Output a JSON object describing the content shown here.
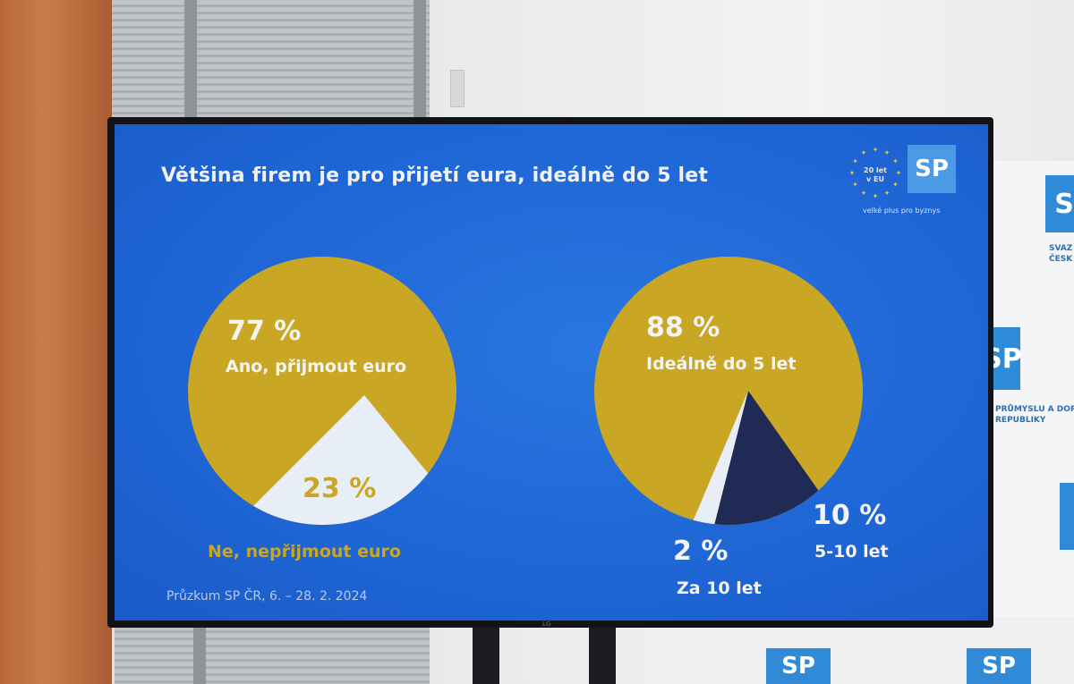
{
  "slide": {
    "title": "Většina firem je pro přijetí eura, ideálně do 5 let",
    "footer": "Průzkum SP ČR, 6. – 28. 2. 2024",
    "tagline": "velké plus pro byznys",
    "badge_text": "20 let v EU",
    "logo_text": "SP"
  },
  "banner": {
    "logo_text": "SP",
    "line1": "SVAZ",
    "line2": "ČESK",
    "line3": "PRŮMYSLU A DOPR",
    "line4": "REPUBLIKY"
  },
  "colors": {
    "gold": "#c9a624",
    "white_slice": "#e8eef8",
    "navy_slice": "#1f2a55",
    "background": "#1f66d6"
  },
  "chart_data": [
    {
      "type": "pie",
      "slices": [
        {
          "label": "Ano, přijmout euro",
          "value": 77,
          "display": "77 %",
          "color": "#c9a624"
        },
        {
          "label": "Ne, nepřijmout euro",
          "value": 23,
          "display": "23 %",
          "color": "#e8eef8"
        }
      ]
    },
    {
      "type": "pie",
      "slices": [
        {
          "label": "Ideálně do 5 let",
          "value": 88,
          "display": "88 %",
          "color": "#c9a624"
        },
        {
          "label": "5-10 let",
          "value": 10,
          "display": "10 %",
          "color": "#1f2a55"
        },
        {
          "label": "Za 10 let",
          "value": 2,
          "display": "2 %",
          "color": "#e8eef8"
        }
      ]
    }
  ]
}
